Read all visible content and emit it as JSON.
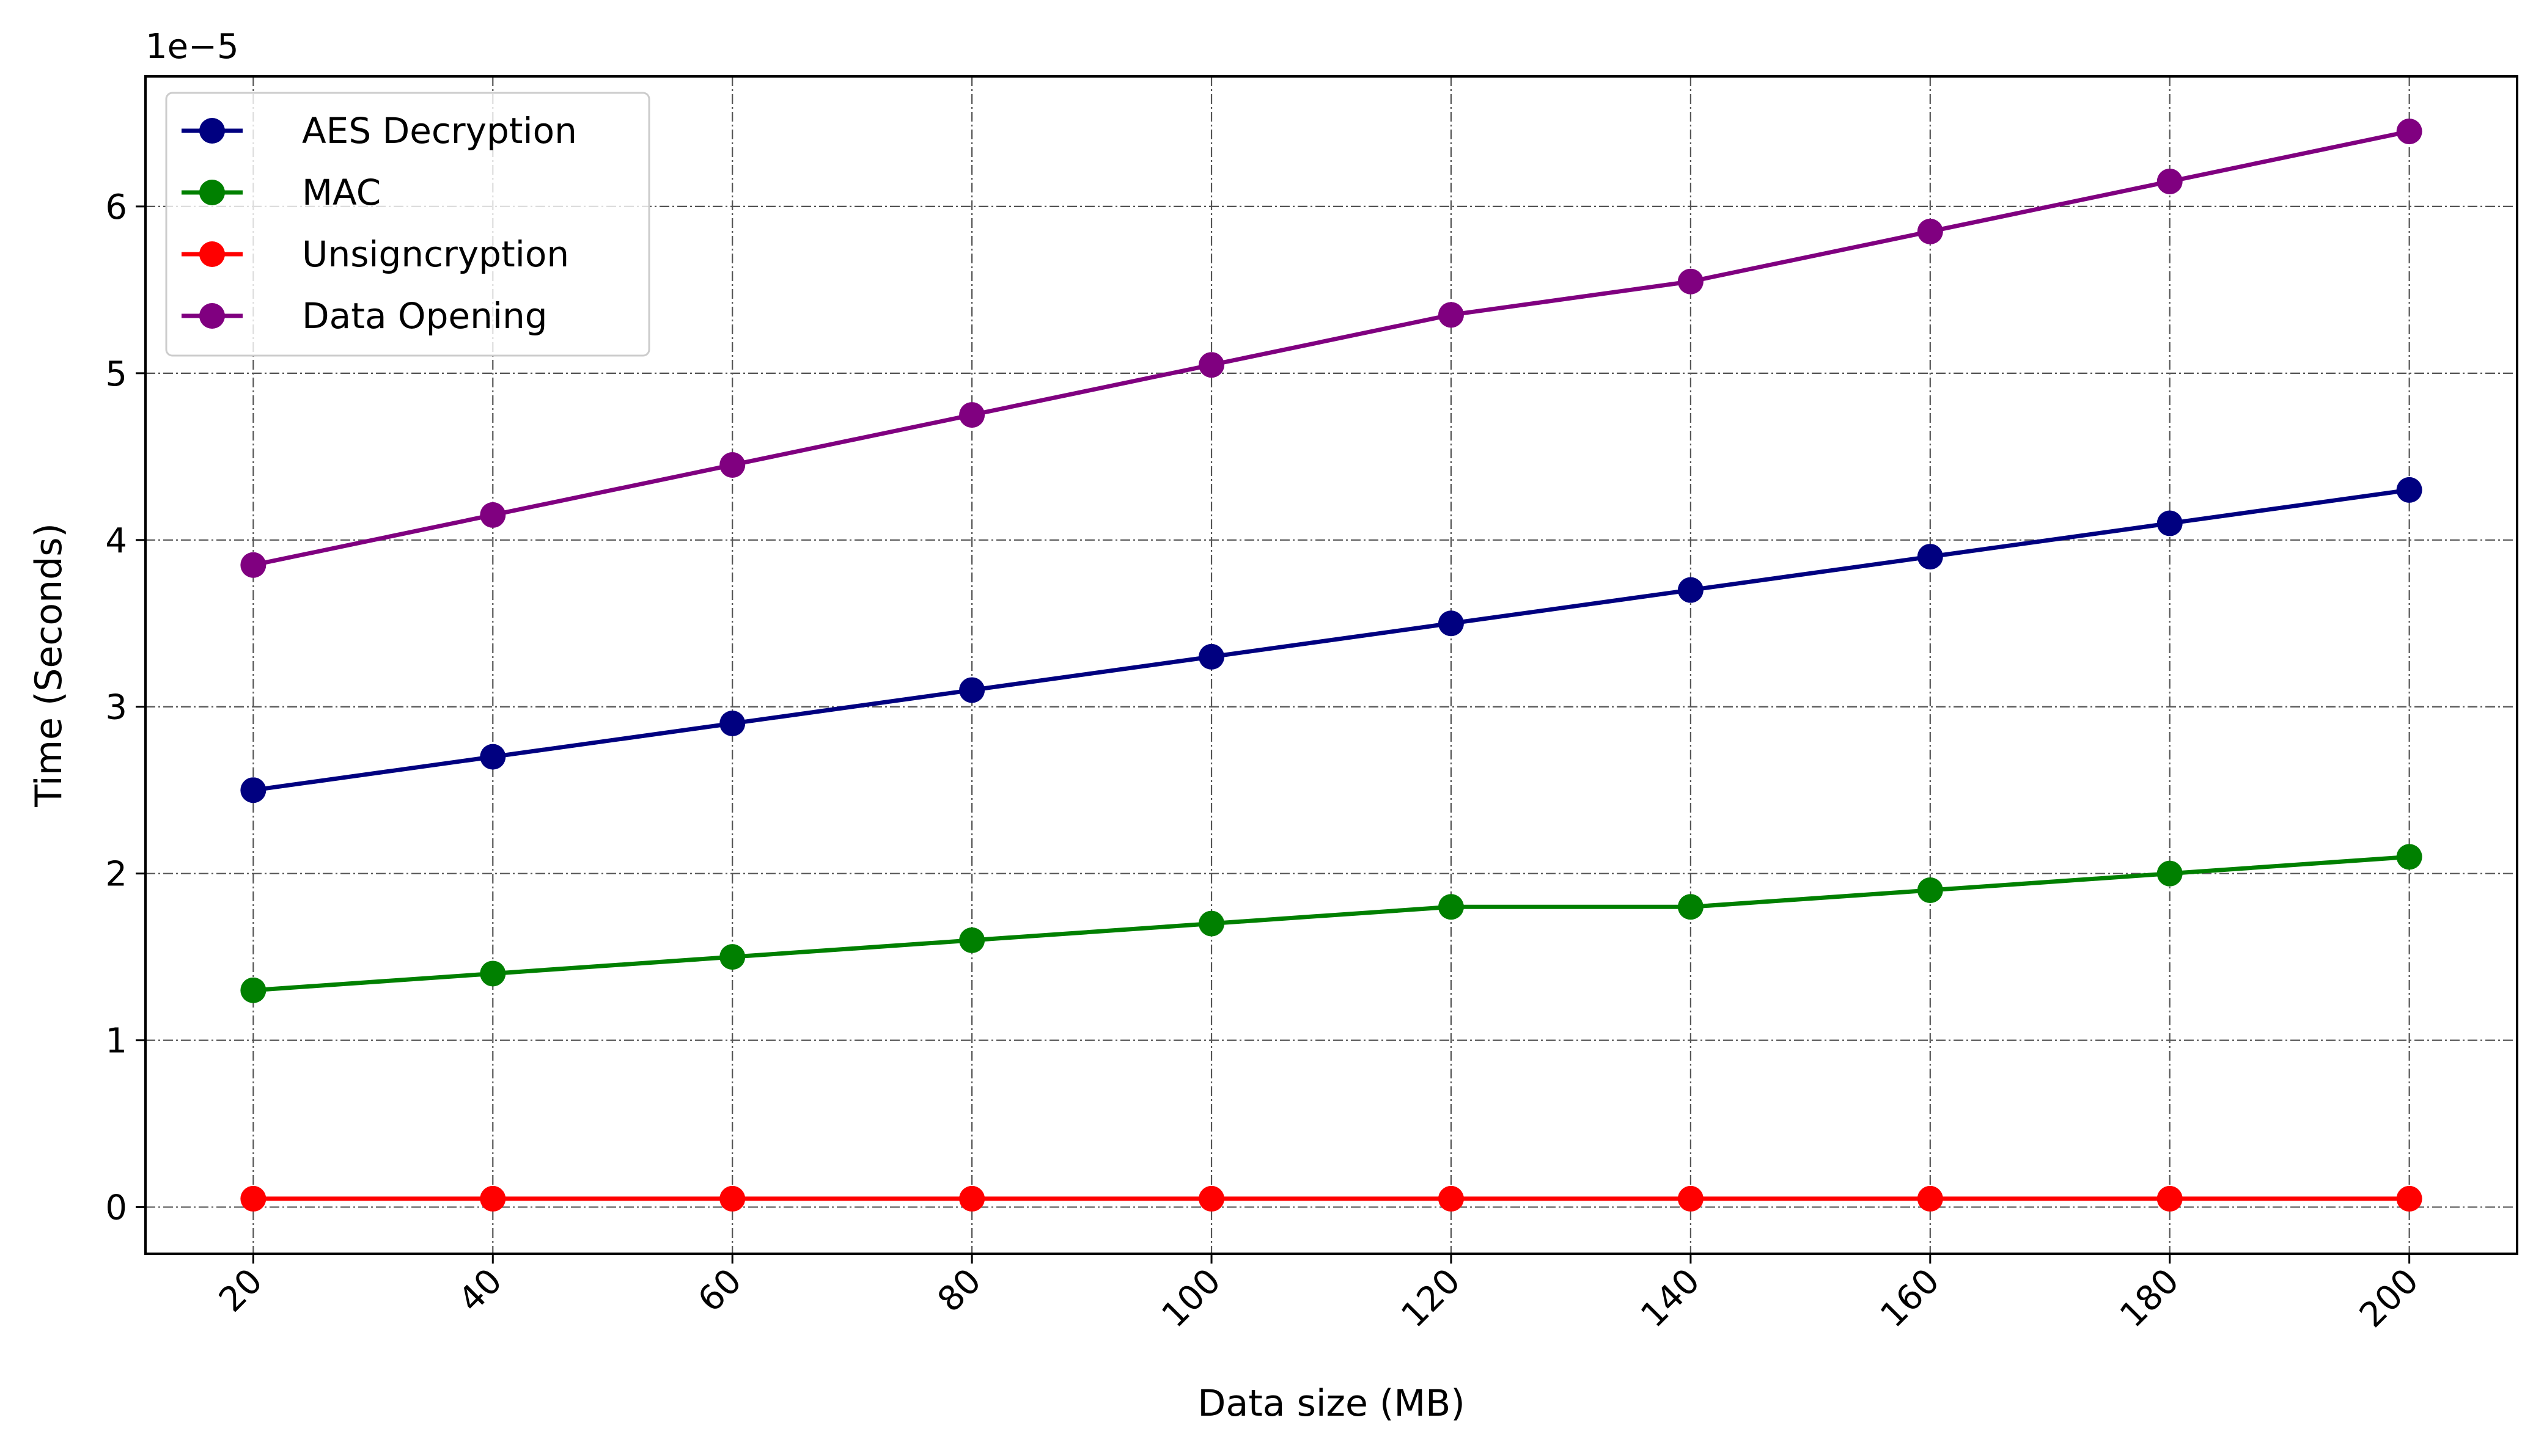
{
  "chart_data": {
    "type": "line",
    "x": [
      20,
      40,
      60,
      80,
      100,
      120,
      140,
      160,
      180,
      200
    ],
    "series": [
      {
        "name": "AES Decryption",
        "color": "#000080",
        "values": [
          2.5,
          2.7,
          2.9,
          3.1,
          3.3,
          3.5,
          3.7,
          3.9,
          4.1,
          4.3
        ]
      },
      {
        "name": "MAC",
        "color": "#008000",
        "values": [
          1.3,
          1.4,
          1.5,
          1.6,
          1.7,
          1.8,
          1.8,
          1.9,
          2.0,
          2.1
        ]
      },
      {
        "name": "Unsigncryption",
        "color": "#ff0000",
        "values": [
          0.05,
          0.05,
          0.05,
          0.05,
          0.05,
          0.05,
          0.05,
          0.05,
          0.05,
          0.05
        ]
      },
      {
        "name": "Data Opening",
        "color": "#800080",
        "values": [
          3.85,
          4.15,
          4.45,
          4.75,
          5.05,
          5.35,
          5.55,
          5.85,
          6.15,
          6.45
        ]
      }
    ],
    "xlabel": "Data size (MB)",
    "ylabel": "Time (Seconds)",
    "y_offset_label": "1e−5",
    "xlim": [
      11,
      209
    ],
    "ylim": [
      -0.28,
      6.78
    ],
    "x_ticks": [
      "20",
      "40",
      "60",
      "80",
      "100",
      "120",
      "140",
      "160",
      "180",
      "200"
    ],
    "y_ticks": [
      "0",
      "1",
      "2",
      "3",
      "4",
      "5",
      "6"
    ],
    "grid": true,
    "legend_position": "upper-left",
    "marker": "circle"
  }
}
